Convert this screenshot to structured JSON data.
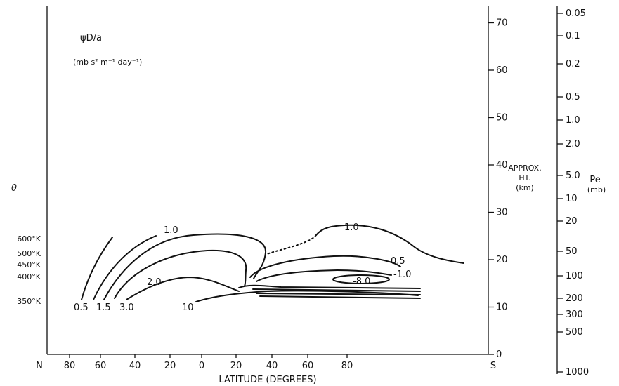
{
  "chart_data": {
    "type": "contour",
    "title": "ψ̄D/a",
    "units": "(mb s² m⁻¹ day⁻¹)",
    "xlabel": "LATITUDE (DEGREES)",
    "x_ticks": [
      "80",
      "60",
      "40",
      "20",
      "0",
      "20",
      "40",
      "60",
      "80"
    ],
    "x_end_labels": {
      "left": "N",
      "right": "S"
    },
    "height_axis": {
      "label_lines": [
        "APPROX.",
        "HT.",
        "(km)"
      ],
      "ticks": [
        "0",
        "10",
        "20",
        "30",
        "40",
        "50",
        "60",
        "70"
      ]
    },
    "pressure_axis": {
      "label": "Pe",
      "unit": "(mb)",
      "ticks": [
        "0.05",
        "0.1",
        "0.2",
        "0.5",
        "1.0",
        "2.0",
        "5.0",
        "10",
        "20",
        "50",
        "100",
        "200",
        "300",
        "500",
        "1000"
      ]
    },
    "theta_axis": {
      "label": "θ",
      "ticks": [
        "600°K",
        "500°K",
        "450°K",
        "400°K",
        "350°K"
      ]
    },
    "contour_labels": [
      "1.0",
      "2.0",
      "0.5",
      "1.5",
      "3.0",
      "10",
      "1.0",
      "0.5",
      "-1.0",
      "-8.0"
    ]
  }
}
